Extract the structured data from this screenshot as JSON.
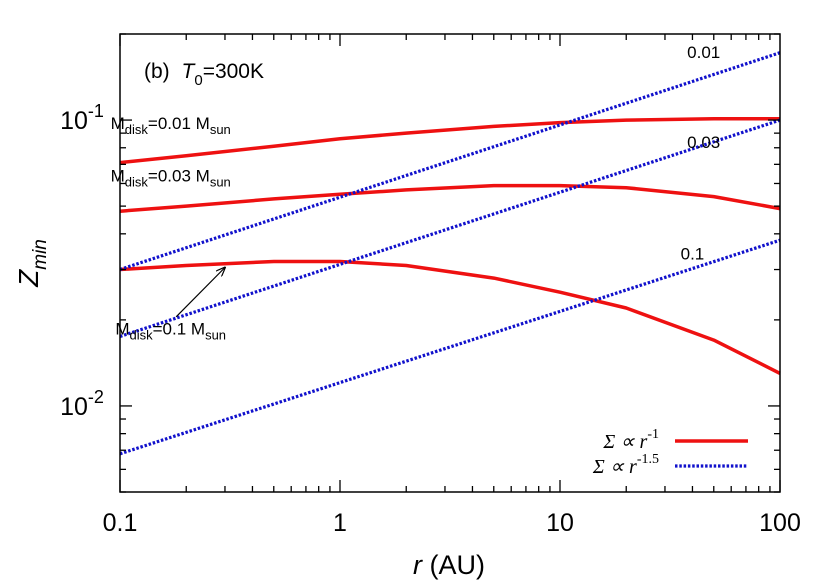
{
  "chart_data": {
    "type": "line",
    "title": "",
    "panel_label": {
      "prefix": "(b)",
      "var": "T",
      "sub": "0",
      "rest": "=300K"
    },
    "xlabel": {
      "var": "r",
      "unit": " (AU)"
    },
    "ylabel": {
      "var": "Z",
      "sub": "min"
    },
    "x_scale": "log",
    "y_scale": "log",
    "xlim": [
      0.1,
      100
    ],
    "ylim": [
      0.005,
      0.2
    ],
    "grid": false,
    "legend_position": "bottom-right",
    "x_ticks": [
      {
        "value": 0.1,
        "label": "0.1"
      },
      {
        "value": 1,
        "label": "1"
      },
      {
        "value": 10,
        "label": "10"
      },
      {
        "value": 100,
        "label": "100"
      }
    ],
    "y_ticks": [
      {
        "value": 0.01,
        "base": "10",
        "exp": "-2"
      },
      {
        "value": 0.1,
        "base": "10",
        "exp": "-1"
      }
    ],
    "legend": [
      {
        "text": "Σ ∝ r",
        "exp": "-1",
        "style": "solid",
        "color": "#ee1111"
      },
      {
        "text": "Σ ∝ r",
        "exp": "-1.5",
        "style": "dotted",
        "color": "#1111cc"
      }
    ],
    "series": [
      {
        "name": "Mdisk=0.01 Msun",
        "style": "solid",
        "color": "#ee1111",
        "x": [
          0.1,
          0.2,
          0.5,
          1,
          2,
          5,
          10,
          20,
          50,
          100
        ],
        "y": [
          0.071,
          0.075,
          0.081,
          0.086,
          0.09,
          0.095,
          0.098,
          0.1,
          0.101,
          0.101
        ]
      },
      {
        "name": "Mdisk=0.03 Msun",
        "style": "solid",
        "color": "#ee1111",
        "x": [
          0.1,
          0.2,
          0.5,
          1,
          2,
          5,
          10,
          20,
          50,
          100
        ],
        "y": [
          0.048,
          0.05,
          0.053,
          0.055,
          0.057,
          0.059,
          0.059,
          0.058,
          0.054,
          0.049
        ]
      },
      {
        "name": "Mdisk=0.1 Msun",
        "style": "solid",
        "color": "#ee1111",
        "x": [
          0.1,
          0.2,
          0.5,
          1,
          2,
          5,
          10,
          20,
          50,
          100
        ],
        "y": [
          0.03,
          0.031,
          0.032,
          0.032,
          0.031,
          0.028,
          0.025,
          0.022,
          0.017,
          0.013
        ]
      },
      {
        "name": "0.01",
        "style": "dotted",
        "color": "#1111cc",
        "x": [
          0.1,
          100
        ],
        "y": [
          0.03,
          0.172
        ]
      },
      {
        "name": "0.03",
        "style": "dotted",
        "color": "#1111cc",
        "x": [
          0.1,
          100
        ],
        "y": [
          0.0175,
          0.1
        ]
      },
      {
        "name": "0.1",
        "style": "dotted",
        "color": "#1111cc",
        "x": [
          0.1,
          100
        ],
        "y": [
          0.0068,
          0.038
        ]
      }
    ],
    "line_labels": [
      {
        "text": "0.01",
        "x": 45,
        "y": 0.165
      },
      {
        "text": "0.03",
        "x": 45,
        "y": 0.08
      },
      {
        "text": "0.1",
        "x": 40,
        "y": 0.0325
      }
    ],
    "curve_labels": [
      {
        "base": "M",
        "sub": "disk",
        "mid": "=0.01 M",
        "sub2": "sun",
        "x": 0.17,
        "y": 0.093
      },
      {
        "base": "M",
        "sub": "disk",
        "mid": "=0.03 M",
        "sub2": "sun",
        "x": 0.17,
        "y": 0.061
      },
      {
        "base": "M",
        "sub": "disk",
        "mid": "=0.1 M",
        "sub2": "sun",
        "x": 0.17,
        "y": 0.0178
      }
    ],
    "arrow": {
      "from": [
        0.18,
        0.0205
      ],
      "to": [
        0.3,
        0.0305
      ]
    }
  }
}
